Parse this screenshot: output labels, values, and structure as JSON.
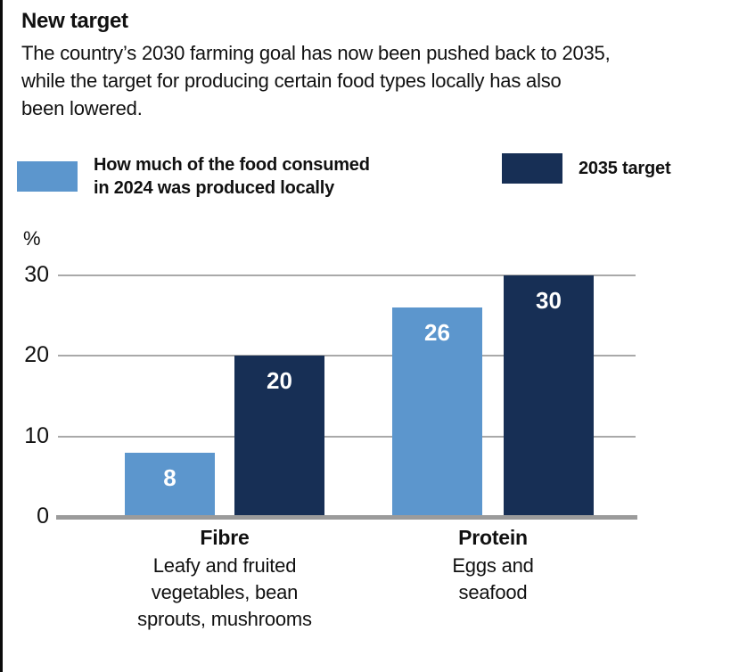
{
  "header": {
    "title": "New target",
    "description": "The country’s 2030 farming goal has now been pushed back to 2035,\nwhile the target for producing certain food types locally has also\nbeen lowered."
  },
  "legend": {
    "items": [
      {
        "label": "How much of the food consumed\nin 2024 was produced locally",
        "color": "#5c96cd"
      },
      {
        "label": "2035 target",
        "color": "#172f55"
      }
    ]
  },
  "chart_data": {
    "type": "bar",
    "title": "New target",
    "unit_label": "%",
    "xlabel": "",
    "ylabel": "%",
    "categories": [
      {
        "name": "Fibre",
        "description": "Leafy and fruited\nvegetables, bean\nsprouts, mushrooms"
      },
      {
        "name": "Protein",
        "description": "Eggs and\nseafood"
      }
    ],
    "series": [
      {
        "name": "How much of the food consumed in 2024 was produced locally",
        "color": "#5c96cd",
        "values": [
          8,
          26
        ]
      },
      {
        "name": "2035 target",
        "color": "#172f55",
        "values": [
          20,
          30
        ]
      }
    ],
    "y_ticks": [
      0,
      10,
      20,
      30
    ],
    "ylim": [
      0,
      31
    ],
    "grid": true,
    "legend_position": "top",
    "gridline_color": "#a9a9a9",
    "axis_color": "#9b9b9b",
    "value_label_color": "#ffffff"
  }
}
